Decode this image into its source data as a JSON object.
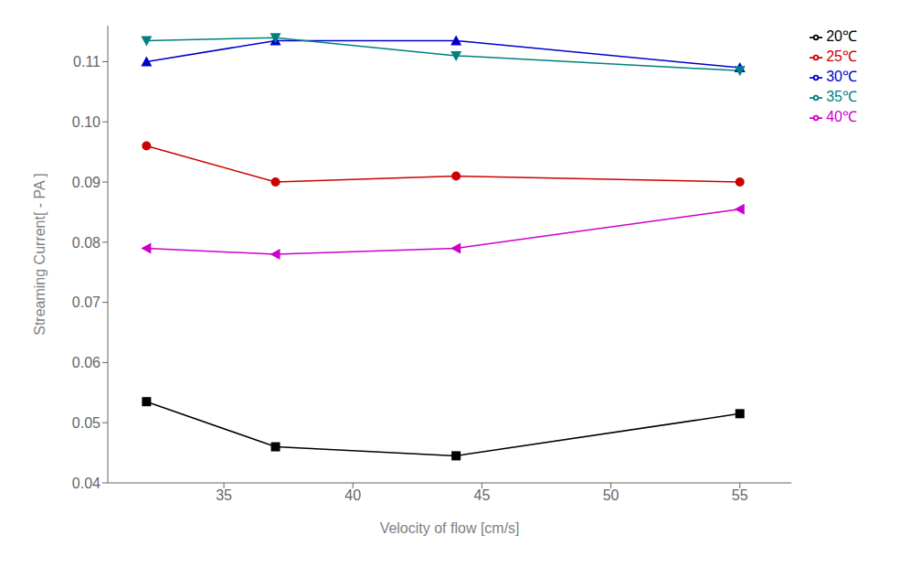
{
  "chart_data": {
    "type": "line",
    "x": [
      32,
      37,
      44,
      55
    ],
    "series": [
      {
        "name": "20℃",
        "color": "#000000",
        "marker": "square",
        "values": [
          0.0535,
          0.046,
          0.0445,
          0.0515
        ]
      },
      {
        "name": "25℃",
        "color": "#cc0000",
        "marker": "circle",
        "values": [
          0.096,
          0.09,
          0.091,
          0.09
        ]
      },
      {
        "name": "30℃",
        "color": "#0000cc",
        "marker": "triangle-up",
        "values": [
          0.11,
          0.1135,
          0.1135,
          0.109
        ]
      },
      {
        "name": "35℃",
        "color": "#008080",
        "marker": "triangle-down",
        "values": [
          0.1135,
          0.114,
          0.111,
          0.1085
        ]
      },
      {
        "name": "40℃",
        "color": "#cc00cc",
        "marker": "triangle-left",
        "values": [
          0.079,
          0.078,
          0.079,
          0.0855
        ]
      }
    ],
    "xlabel": "Velocity of flow [cm/s]",
    "ylabel": "Streaming Current[ - PA ]",
    "xlim": [
      30.5,
      57
    ],
    "ylim": [
      0.04,
      0.116
    ],
    "xticks": [
      35,
      40,
      45,
      50,
      55
    ],
    "yticks": [
      0.04,
      0.05,
      0.06,
      0.07,
      0.08,
      0.09,
      {
        "value": 0.1,
        "label": "0.10"
      },
      0.11
    ],
    "legend": "upper right",
    "grid": false
  }
}
